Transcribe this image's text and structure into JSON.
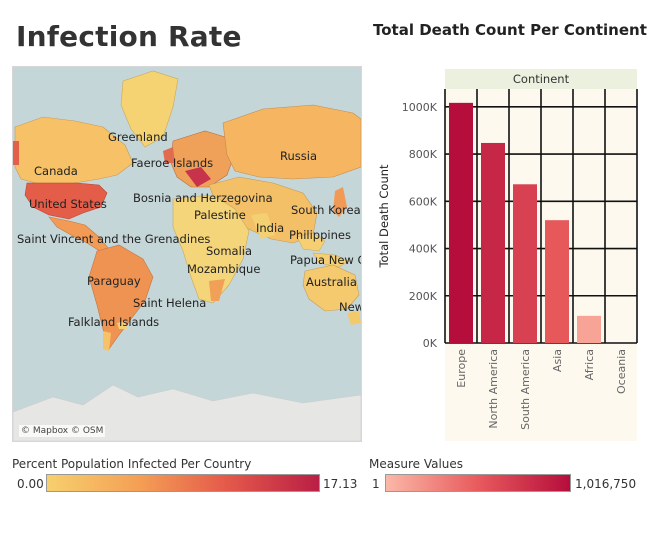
{
  "map": {
    "title": "Infection Rate",
    "credit": "© Mapbox © OSM",
    "labels": [
      "Greenland",
      "Canada",
      "Faeroe Islands",
      "Russia",
      "United States",
      "Bosnia and Herzegovina",
      "Palestine",
      "South Korea",
      "India",
      "Philippines",
      "Saint Vincent and the Grenadines",
      "Somalia",
      "Papua New G",
      "Mozambique",
      "Paraguay",
      "Australia",
      "Saint Helena",
      "New",
      "Falkland Islands"
    ]
  },
  "legend_infected": {
    "title": "Percent Population Infected Per Country",
    "min": "0.00",
    "max": "17.13",
    "colors": [
      "#f6d06e",
      "#f5a055",
      "#e4584a",
      "#b91f45"
    ]
  },
  "legend_measure": {
    "title": "Measure Values",
    "min": "1",
    "max": "1,016,750",
    "colors": [
      "#fbb8a7",
      "#e85a5c",
      "#b50d3c"
    ]
  },
  "chart_data": {
    "type": "bar",
    "title": "Total Death Count Per Continent",
    "header": "Continent",
    "ylabel": "Total Death Count",
    "categories": [
      "Europe",
      "North America",
      "South America",
      "Asia",
      "Africa",
      "Oceania"
    ],
    "values": [
      1016750,
      847000,
      672000,
      520000,
      115000,
      0
    ],
    "ylim": [
      0,
      1050000
    ],
    "yticks": [
      "0K",
      "200K",
      "400K",
      "600K",
      "800K",
      "1000K"
    ],
    "ytick_values": [
      0,
      200000,
      400000,
      600000,
      800000,
      1000000
    ],
    "grid": true,
    "background": "#fdf9ef",
    "header_bg": "#ecf1df"
  }
}
